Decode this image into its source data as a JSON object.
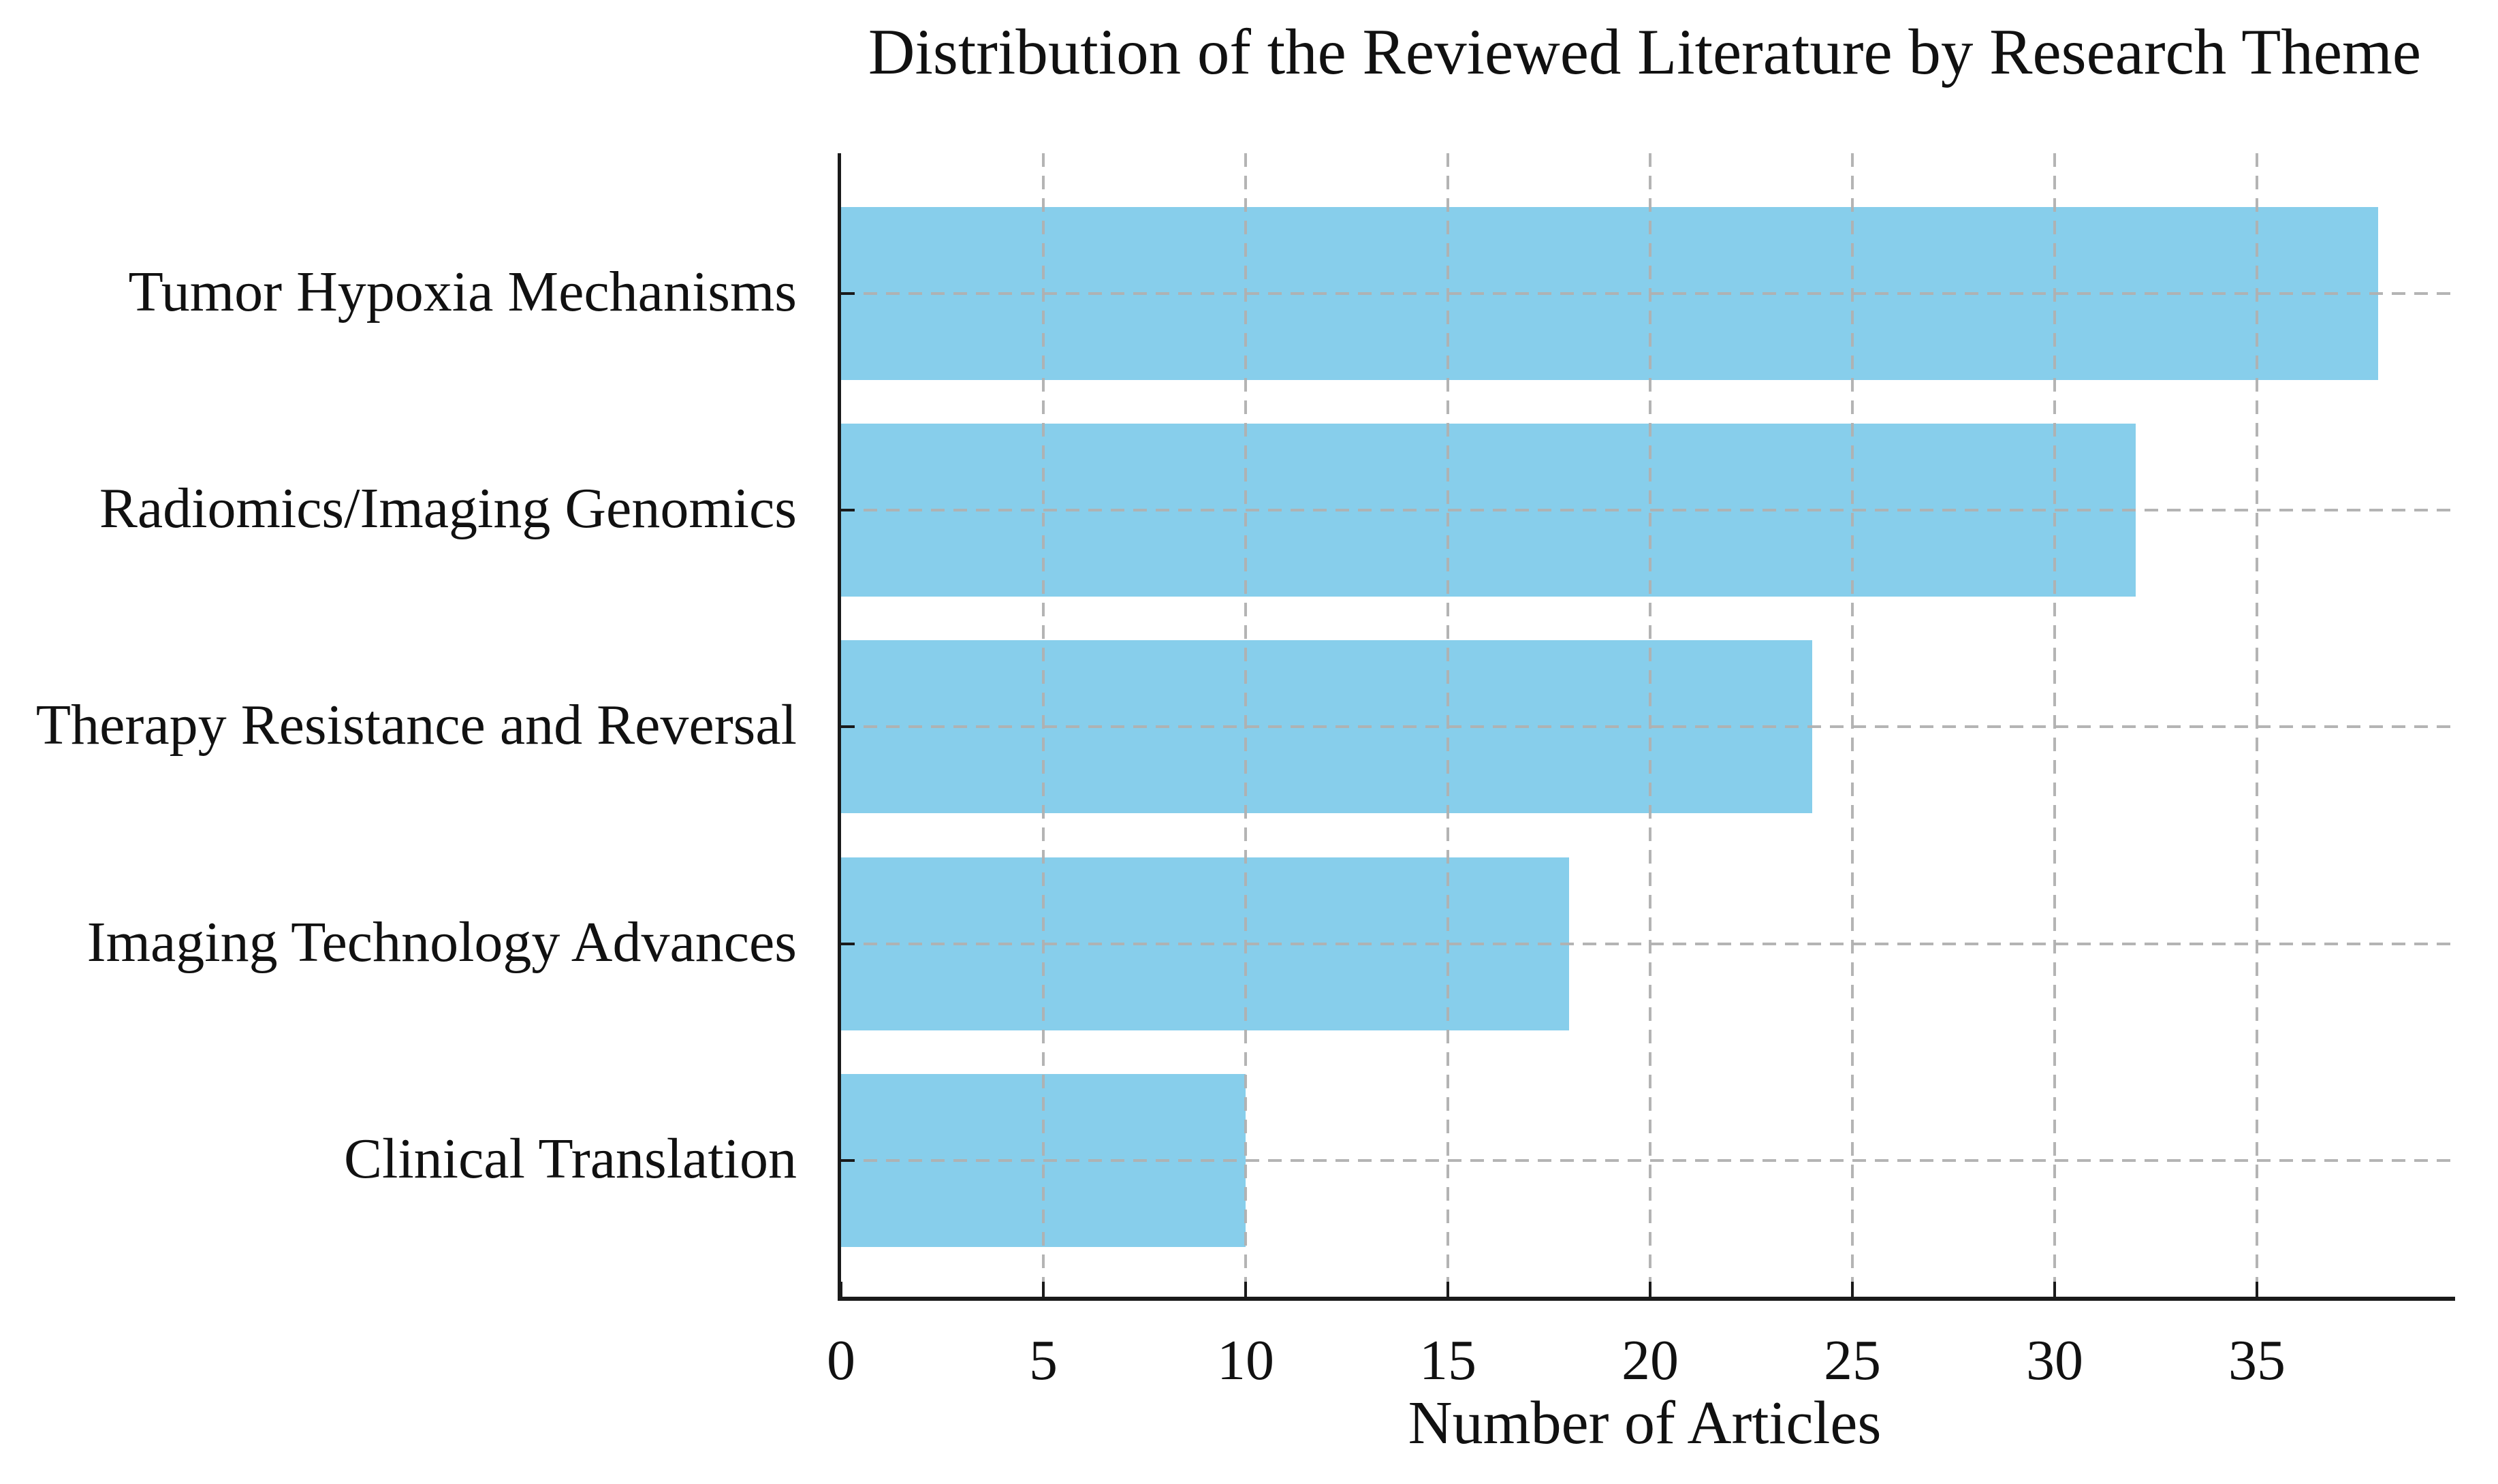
{
  "chart_data": {
    "type": "bar",
    "orientation": "horizontal",
    "title": "Distribution of the Reviewed Literature by Research Theme",
    "xlabel": "Number of Articles",
    "ylabel": "",
    "categories": [
      "Tumor Hypoxia Mechanisms",
      "Radiomics/Imaging Genomics",
      "Therapy Resistance and Reversal",
      "Imaging Technology Advances",
      "Clinical Translation"
    ],
    "values": [
      38,
      32,
      24,
      18,
      10
    ],
    "x_ticks": [
      0,
      5,
      10,
      15,
      20,
      25,
      30,
      35
    ],
    "xlim": [
      0,
      39.9
    ],
    "grid": "dashed, both axes, drawn above bars",
    "legend": "none",
    "bar_color": "#87CEEB",
    "grid_color": "#b0b0b0",
    "axis_color": "#1a1a1a",
    "background_color": "#ffffff"
  }
}
